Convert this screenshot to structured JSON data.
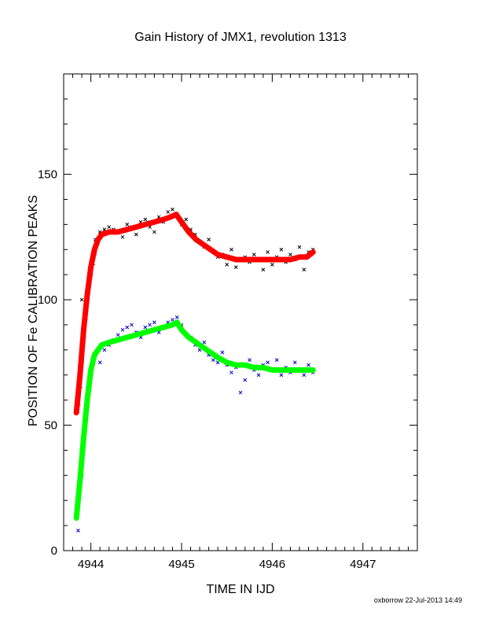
{
  "chart_data": {
    "type": "scatter",
    "title": "Gain History of JMX1, revolution 1313",
    "xlabel": "TIME IN IJD",
    "ylabel": "POSITION OF Fe CALIBRATION PEAKS",
    "xlim": [
      4943.7,
      4947.6
    ],
    "ylim": [
      0,
      190
    ],
    "x_ticks": [
      4944,
      4945,
      4946,
      4947
    ],
    "y_ticks": [
      0,
      50,
      100,
      150
    ],
    "grid": false,
    "series": [
      {
        "marker": "x",
        "color": "#000000",
        "points": [
          [
            4943.9,
            100
          ],
          [
            4944.0,
            115
          ],
          [
            4944.05,
            124
          ],
          [
            4944.1,
            127
          ],
          [
            4944.15,
            128
          ],
          [
            4944.2,
            129
          ],
          [
            4944.25,
            128
          ],
          [
            4944.3,
            127
          ],
          [
            4944.35,
            125
          ],
          [
            4944.4,
            130
          ],
          [
            4944.45,
            129
          ],
          [
            4944.5,
            126
          ],
          [
            4944.55,
            131
          ],
          [
            4944.6,
            132
          ],
          [
            4944.65,
            129
          ],
          [
            4944.7,
            127
          ],
          [
            4944.75,
            133
          ],
          [
            4944.8,
            131
          ],
          [
            4944.85,
            135
          ],
          [
            4944.9,
            136
          ],
          [
            4944.95,
            134
          ],
          [
            4945.0,
            130
          ],
          [
            4945.05,
            132
          ],
          [
            4945.1,
            128
          ],
          [
            4945.15,
            126
          ],
          [
            4945.2,
            123
          ],
          [
            4945.25,
            121
          ],
          [
            4945.3,
            124
          ],
          [
            4945.35,
            119
          ],
          [
            4945.4,
            117
          ],
          [
            4945.45,
            118
          ],
          [
            4945.5,
            114
          ],
          [
            4945.55,
            120
          ],
          [
            4945.6,
            113
          ],
          [
            4945.65,
            116
          ],
          [
            4945.7,
            117
          ],
          [
            4945.75,
            115
          ],
          [
            4945.8,
            118
          ],
          [
            4945.85,
            116
          ],
          [
            4945.9,
            112
          ],
          [
            4945.95,
            119
          ],
          [
            4946.0,
            114
          ],
          [
            4946.05,
            117
          ],
          [
            4946.1,
            120
          ],
          [
            4946.15,
            115
          ],
          [
            4946.2,
            118
          ],
          [
            4946.25,
            116
          ],
          [
            4946.3,
            121
          ],
          [
            4946.35,
            112
          ],
          [
            4946.4,
            119
          ],
          [
            4946.45,
            120
          ]
        ]
      },
      {
        "marker": "x",
        "color": "#0000cc",
        "points": [
          [
            4943.86,
            8
          ],
          [
            4943.9,
            30
          ],
          [
            4943.95,
            55
          ],
          [
            4944.0,
            72
          ],
          [
            4944.05,
            78
          ],
          [
            4944.1,
            75
          ],
          [
            4944.15,
            80
          ],
          [
            4944.2,
            82
          ],
          [
            4944.25,
            84
          ],
          [
            4944.3,
            86
          ],
          [
            4944.35,
            88
          ],
          [
            4944.4,
            89
          ],
          [
            4944.45,
            90
          ],
          [
            4944.5,
            87
          ],
          [
            4944.55,
            85
          ],
          [
            4944.6,
            89
          ],
          [
            4944.65,
            90
          ],
          [
            4944.7,
            91
          ],
          [
            4944.75,
            87
          ],
          [
            4944.8,
            89
          ],
          [
            4944.85,
            91
          ],
          [
            4944.9,
            92
          ],
          [
            4944.95,
            93
          ],
          [
            4945.0,
            90
          ],
          [
            4945.05,
            86
          ],
          [
            4945.1,
            85
          ],
          [
            4945.15,
            82
          ],
          [
            4945.2,
            80
          ],
          [
            4945.25,
            83
          ],
          [
            4945.3,
            78
          ],
          [
            4945.35,
            76
          ],
          [
            4945.4,
            75
          ],
          [
            4945.45,
            79
          ],
          [
            4945.5,
            74
          ],
          [
            4945.55,
            71
          ],
          [
            4945.6,
            73
          ],
          [
            4945.65,
            63
          ],
          [
            4945.7,
            68
          ],
          [
            4945.75,
            76
          ],
          [
            4945.8,
            72
          ],
          [
            4945.85,
            70
          ],
          [
            4945.9,
            74
          ],
          [
            4945.95,
            75
          ],
          [
            4946.0,
            72
          ],
          [
            4946.05,
            76
          ],
          [
            4946.1,
            70
          ],
          [
            4946.15,
            73
          ],
          [
            4946.2,
            71
          ],
          [
            4946.25,
            75
          ],
          [
            4946.3,
            72
          ],
          [
            4946.35,
            70
          ],
          [
            4946.4,
            74
          ],
          [
            4946.45,
            71
          ]
        ]
      },
      {
        "marker": "+",
        "color": "#cc0000",
        "points": [
          [
            4943.84,
            55
          ],
          [
            4943.86,
            58
          ],
          [
            4943.88,
            65
          ],
          [
            4943.9,
            75
          ],
          [
            4943.92,
            85
          ],
          [
            4943.94,
            92
          ],
          [
            4943.96,
            100
          ],
          [
            4943.98,
            106
          ],
          [
            4944.0,
            110
          ],
          [
            4944.02,
            114
          ],
          [
            4944.04,
            118
          ]
        ]
      },
      {
        "marker": "+",
        "color": "#00cc00",
        "points": [
          [
            4943.84,
            13
          ],
          [
            4943.86,
            20
          ],
          [
            4943.88,
            30
          ],
          [
            4943.9,
            40
          ],
          [
            4943.92,
            48
          ],
          [
            4943.94,
            55
          ],
          [
            4943.96,
            60
          ],
          [
            4943.98,
            65
          ],
          [
            4944.0,
            70
          ],
          [
            4944.02,
            74
          ]
        ]
      },
      {
        "line": true,
        "color": "#ff0000",
        "points": [
          [
            4943.84,
            55
          ],
          [
            4943.88,
            70
          ],
          [
            4943.92,
            88
          ],
          [
            4943.96,
            102
          ],
          [
            4944.0,
            113
          ],
          [
            4944.04,
            120
          ],
          [
            4944.08,
            124
          ],
          [
            4944.12,
            126
          ],
          [
            4944.2,
            127
          ],
          [
            4944.3,
            127
          ],
          [
            4944.4,
            128
          ],
          [
            4944.5,
            129
          ],
          [
            4944.6,
            130
          ],
          [
            4944.7,
            131
          ],
          [
            4944.8,
            132
          ],
          [
            4944.88,
            133
          ],
          [
            4944.94,
            134
          ],
          [
            4945.0,
            131
          ],
          [
            4945.08,
            127
          ],
          [
            4945.16,
            124
          ],
          [
            4945.24,
            122
          ],
          [
            4945.32,
            120
          ],
          [
            4945.4,
            118
          ],
          [
            4945.5,
            117
          ],
          [
            4945.6,
            116
          ],
          [
            4945.7,
            116
          ],
          [
            4945.8,
            116
          ],
          [
            4945.9,
            116
          ],
          [
            4946.0,
            116
          ],
          [
            4946.1,
            116
          ],
          [
            4946.2,
            116
          ],
          [
            4946.3,
            117
          ],
          [
            4946.38,
            117
          ],
          [
            4946.45,
            119
          ]
        ]
      },
      {
        "line": true,
        "color": "#00ff00",
        "points": [
          [
            4943.84,
            13
          ],
          [
            4943.88,
            28
          ],
          [
            4943.92,
            45
          ],
          [
            4943.96,
            60
          ],
          [
            4944.0,
            72
          ],
          [
            4944.04,
            78
          ],
          [
            4944.08,
            80
          ],
          [
            4944.12,
            82
          ],
          [
            4944.2,
            83
          ],
          [
            4944.3,
            84
          ],
          [
            4944.4,
            85
          ],
          [
            4944.5,
            86
          ],
          [
            4944.6,
            87
          ],
          [
            4944.7,
            88
          ],
          [
            4944.8,
            89
          ],
          [
            4944.9,
            90
          ],
          [
            4944.95,
            91
          ],
          [
            4945.0,
            88
          ],
          [
            4945.08,
            85
          ],
          [
            4945.16,
            83
          ],
          [
            4945.24,
            81
          ],
          [
            4945.32,
            79
          ],
          [
            4945.4,
            77
          ],
          [
            4945.5,
            75
          ],
          [
            4945.6,
            74
          ],
          [
            4945.7,
            74
          ],
          [
            4945.8,
            73
          ],
          [
            4945.9,
            73
          ],
          [
            4946.0,
            72
          ],
          [
            4946.1,
            72
          ],
          [
            4946.2,
            72
          ],
          [
            4946.3,
            72
          ],
          [
            4946.38,
            72
          ],
          [
            4946.45,
            72
          ]
        ]
      }
    ]
  },
  "footer": "oxborrow 22-Jul-2013 14:49"
}
